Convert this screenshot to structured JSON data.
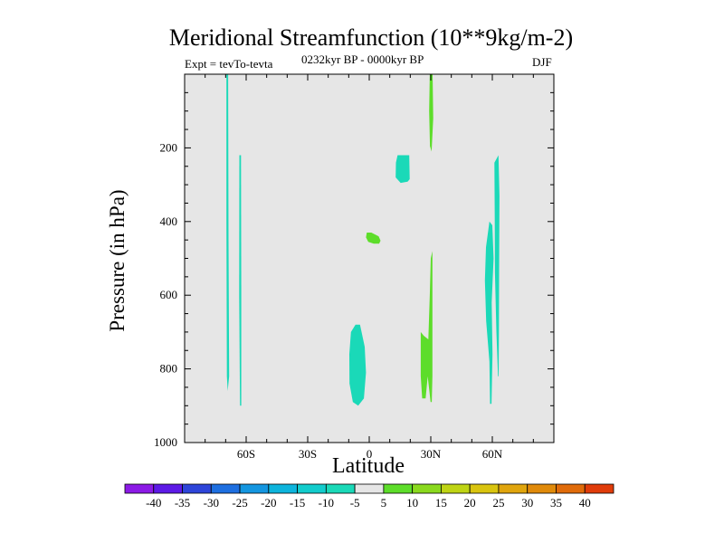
{
  "chart_data": {
    "type": "contour",
    "title": "Meridional Streamfunction (10**9kg/m-2)",
    "left_label": "Expt = tevTo-tevta",
    "center_label": "0232kyr BP - 0000kyr BP",
    "right_label": "DJF",
    "xlabel": "Latitude",
    "ylabel": "Pressure (in hPa)",
    "xlim": [
      -90,
      90
    ],
    "ylim": [
      1000,
      0
    ],
    "y_scale": "linear, inverted",
    "x_ticks": [
      {
        "value": -60,
        "label": "60S"
      },
      {
        "value": -30,
        "label": "30S"
      },
      {
        "value": 0,
        "label": "0"
      },
      {
        "value": 30,
        "label": "30N"
      },
      {
        "value": 60,
        "label": "60N"
      }
    ],
    "y_ticks": [
      {
        "value": 200,
        "label": "200"
      },
      {
        "value": 400,
        "label": "400"
      },
      {
        "value": 600,
        "label": "600"
      },
      {
        "value": 800,
        "label": "800"
      },
      {
        "value": 1000,
        "label": "1000"
      }
    ],
    "background_color": "#e6e6e6",
    "regions": [
      {
        "level": -10,
        "color": "#1ad9b8",
        "points": [
          [
            -69.6,
            0
          ],
          [
            -68.8,
            0
          ],
          [
            -68.6,
            450
          ],
          [
            -68.3,
            820
          ],
          [
            -69.0,
            860
          ],
          [
            -69.4,
            820
          ],
          [
            -69.6,
            400
          ]
        ]
      },
      {
        "level": -10,
        "color": "#1ad9b8",
        "points": [
          [
            -63.3,
            220
          ],
          [
            -62.5,
            220
          ],
          [
            -62.4,
            600
          ],
          [
            -62.4,
            900
          ],
          [
            -63.0,
            900
          ],
          [
            -63.4,
            600
          ]
        ]
      },
      {
        "level": -10,
        "color": "#1ad9b8",
        "points": [
          [
            -6.7,
            680
          ],
          [
            -4.5,
            680
          ],
          [
            -2.2,
            740
          ],
          [
            -1.6,
            810
          ],
          [
            -2.6,
            880
          ],
          [
            -5.4,
            900
          ],
          [
            -8.0,
            890
          ],
          [
            -9.6,
            840
          ],
          [
            -9.7,
            760
          ],
          [
            -8.9,
            700
          ]
        ]
      },
      {
        "level": -10,
        "color": "#1ad9b8",
        "points": [
          [
            13.8,
            220
          ],
          [
            19.5,
            220
          ],
          [
            19.7,
            285
          ],
          [
            18.7,
            292
          ],
          [
            15.3,
            295
          ],
          [
            12.9,
            280
          ],
          [
            13.0,
            240
          ]
        ]
      },
      {
        "level": -10,
        "color": "#1ad9b8",
        "points": [
          [
            61.0,
            240
          ],
          [
            63.0,
            220
          ],
          [
            63.5,
            330
          ],
          [
            63.3,
            540
          ],
          [
            63.2,
            700
          ],
          [
            63.1,
            820
          ],
          [
            62.8,
            820
          ],
          [
            62.0,
            700
          ],
          [
            61.3,
            540
          ],
          [
            61.2,
            400
          ]
        ]
      },
      {
        "level": -10,
        "color": "#1ad9b8",
        "points": [
          [
            58.6,
            400
          ],
          [
            60.0,
            410
          ],
          [
            60.6,
            500
          ],
          [
            59.7,
            620
          ],
          [
            60.1,
            760
          ],
          [
            59.6,
            895
          ],
          [
            58.9,
            895
          ],
          [
            58.6,
            780
          ],
          [
            57.0,
            670
          ],
          [
            56.4,
            560
          ],
          [
            56.9,
            470
          ]
        ]
      },
      {
        "level": 5,
        "color": "#5ddd2a",
        "points": [
          [
            29.5,
            0
          ],
          [
            30.9,
            0
          ],
          [
            31.2,
            120
          ],
          [
            30.4,
            210
          ],
          [
            29.6,
            195
          ],
          [
            29.2,
            100
          ]
        ]
      },
      {
        "level": 5,
        "color": "#5ddd2a",
        "points": [
          [
            -1.2,
            430
          ],
          [
            1.0,
            430
          ],
          [
            4.6,
            440
          ],
          [
            5.5,
            452
          ],
          [
            4.8,
            460
          ],
          [
            2.2,
            460
          ],
          [
            -0.5,
            455
          ],
          [
            -1.6,
            443
          ]
        ]
      },
      {
        "level": 5,
        "color": "#5ddd2a",
        "points": [
          [
            30.0,
            500
          ],
          [
            30.8,
            480
          ],
          [
            30.8,
            650
          ],
          [
            30.8,
            820
          ],
          [
            30.5,
            890
          ],
          [
            29.9,
            890
          ],
          [
            28.5,
            820
          ],
          [
            27.5,
            880
          ],
          [
            25.8,
            880
          ],
          [
            25.1,
            820
          ],
          [
            25.1,
            700
          ],
          [
            26.6,
            710
          ],
          [
            28.8,
            720
          ],
          [
            29.5,
            600
          ]
        ]
      }
    ],
    "colorbar": {
      "labels": [
        "-40",
        "-35",
        "-30",
        "-25",
        "-20",
        "-15",
        "-10",
        "-5",
        "5",
        "10",
        "15",
        "20",
        "25",
        "30",
        "35",
        "40"
      ],
      "colors": [
        "#8c1ae6",
        "#5d1ae6",
        "#2e45d9",
        "#1e6fe0",
        "#1496e0",
        "#0db4dc",
        "#12cccc",
        "#1ad9b8",
        "#e6e6e6",
        "#5ddd2a",
        "#8ad91e",
        "#bfd414",
        "#d9c40f",
        "#e0a50d",
        "#e08a0a",
        "#e06b0a",
        "#e03c0a"
      ]
    }
  }
}
